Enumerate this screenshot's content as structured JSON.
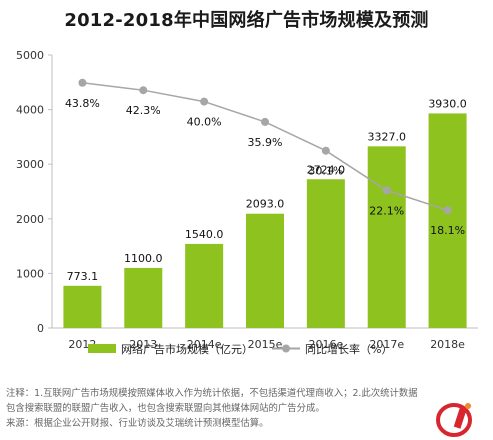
{
  "chart_data": {
    "type": "bar",
    "title": "2012-2018年中国网络广告市场规模及预测",
    "categories": [
      "2012",
      "2013",
      "2014e",
      "2015e",
      "2016e",
      "2017e",
      "2018e"
    ],
    "series": [
      {
        "name": "网络广告市场规模（亿元）",
        "type": "bar",
        "values": [
          773.1,
          1100.0,
          1540.0,
          2093.0,
          2724.0,
          3327.0,
          3930.0
        ],
        "labels": [
          "773.1",
          "1100.0",
          "1540.0",
          "2093.0",
          "2724.0",
          "3327.0",
          "3930.0"
        ]
      },
      {
        "name": "同比增长率（%）",
        "type": "line",
        "values": [
          43.8,
          42.3,
          40.0,
          35.9,
          30.1,
          22.1,
          18.1
        ],
        "labels": [
          "43.8%",
          "42.3%",
          "40.0%",
          "35.9%",
          "30.1%",
          "22.1%",
          "18.1%"
        ]
      }
    ],
    "ylim": [
      0,
      5000
    ],
    "yticks": [
      "0",
      "1000",
      "2000",
      "3000",
      "4000",
      "5000"
    ],
    "grid": false,
    "legend": "bottom",
    "colors": {
      "bar": "#8dc21f",
      "line": "#a6a6a6",
      "marker": "#a6a6a6"
    }
  },
  "notes": [
    "注释：1.互联网广告市场规模按照媒体收入作为统计依据，不包括渠道代理商收入；2.此次统计数据",
    "包含搜索联盟的联盟广告收入，也包含搜索联盟向其他媒体网站的广告分成。",
    "来源：根据企业公开财报、行业访谈及艾瑞统计预测模型估算。"
  ],
  "watermark": {
    "icon": "iresearch-logo-icon"
  }
}
